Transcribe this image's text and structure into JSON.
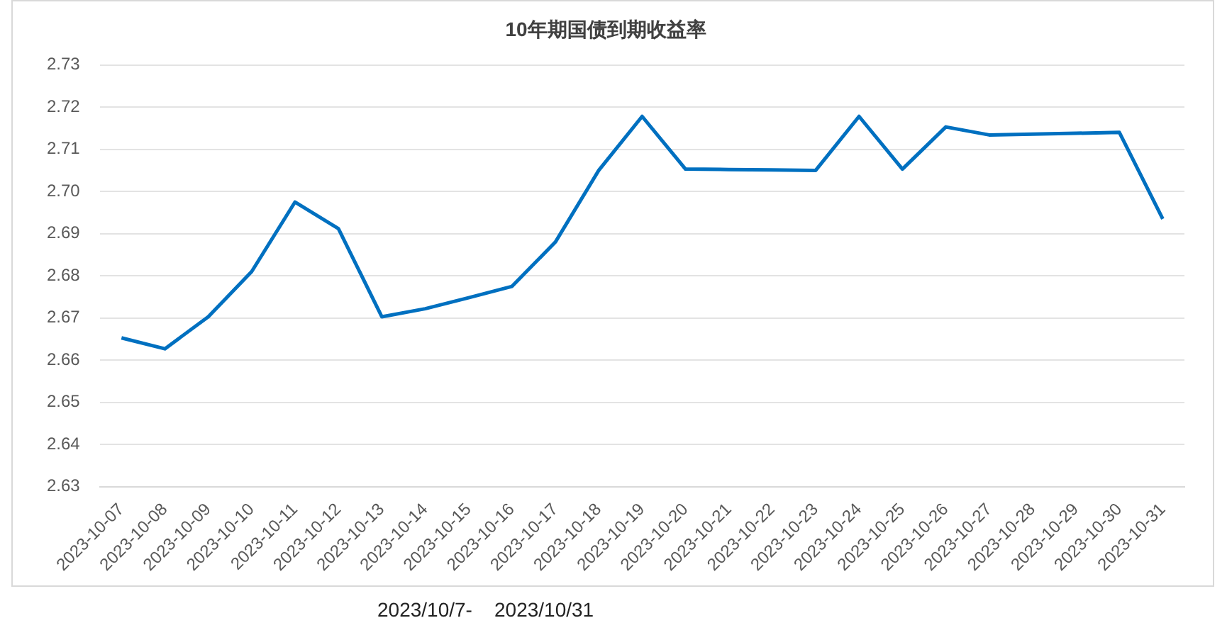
{
  "chart_data": {
    "type": "line",
    "title": "10年期国债到期收益率",
    "categories": [
      "2023-10-07",
      "2023-10-08",
      "2023-10-09",
      "2023-10-10",
      "2023-10-11",
      "2023-10-12",
      "2023-10-13",
      "2023-10-14",
      "2023-10-15",
      "2023-10-16",
      "2023-10-17",
      "2023-10-18",
      "2023-10-19",
      "2023-10-20",
      "2023-10-21",
      "2023-10-22",
      "2023-10-23",
      "2023-10-24",
      "2023-10-25",
      "2023-10-26",
      "2023-10-27",
      "2023-10-28",
      "2023-10-29",
      "2023-10-30",
      "2023-10-31"
    ],
    "series": [
      {
        "color": "#0070c0",
        "values": [
          2.6653,
          2.6627,
          2.6703,
          2.681,
          2.6975,
          2.6912,
          2.6703,
          2.6722,
          2.6748,
          2.6775,
          2.688,
          2.705,
          2.7178,
          2.7053,
          2.7052,
          2.7051,
          2.705,
          2.7178,
          2.7053,
          2.7153,
          2.7134,
          2.7136,
          2.7138,
          2.714,
          2.6935
        ]
      }
    ],
    "ylim": [
      2.63,
      2.73
    ],
    "yticks": [
      2.63,
      2.64,
      2.65,
      2.66,
      2.67,
      2.68,
      2.69,
      {
        "value": 2.7,
        "label": "2.70"
      },
      2.71,
      2.72,
      2.73
    ],
    "grid": "y",
    "legend": false,
    "marker": "none",
    "line_style": "solid",
    "annotations": [
      "2023/10/7-    2023/10/31"
    ]
  }
}
